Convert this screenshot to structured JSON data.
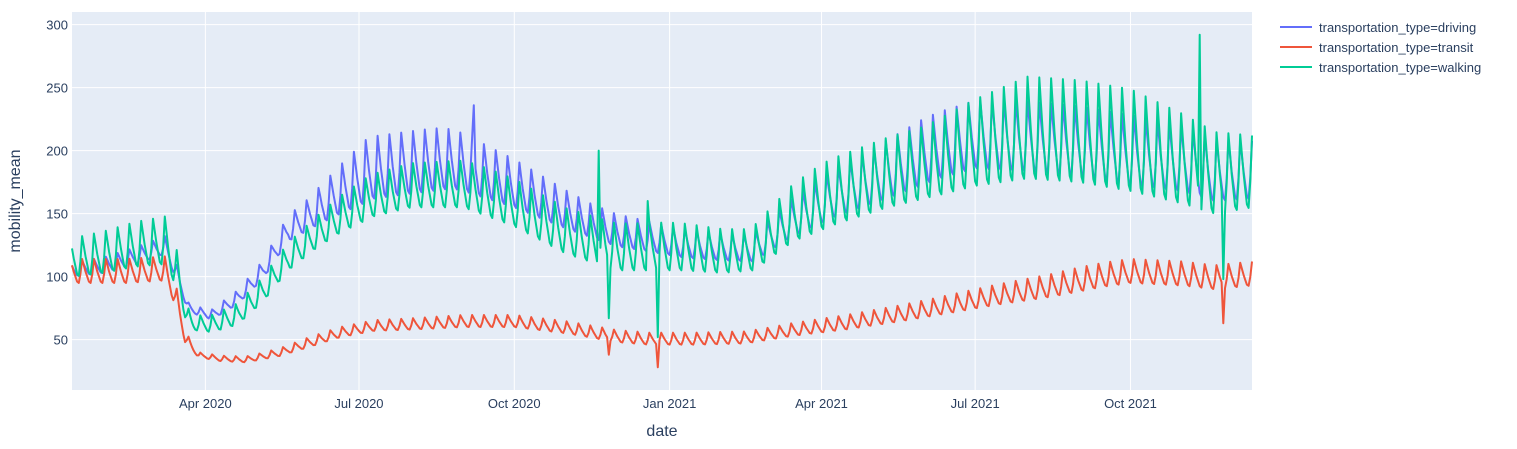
{
  "chart_data": {
    "type": "line",
    "title": "",
    "xlabel": "date",
    "ylabel": "mobility_mean",
    "x_start": "2020-01-13",
    "x_end": "2021-12-12",
    "ylim": [
      10,
      310
    ],
    "x_ticks": [
      {
        "date": "2020-04-01",
        "label": "Apr 2020"
      },
      {
        "date": "2020-07-01",
        "label": "Jul 2020"
      },
      {
        "date": "2020-10-01",
        "label": "Oct 2020"
      },
      {
        "date": "2021-01-01",
        "label": "Jan 2021"
      },
      {
        "date": "2021-04-01",
        "label": "Apr 2021"
      },
      {
        "date": "2021-07-01",
        "label": "Jul 2021"
      },
      {
        "date": "2021-10-01",
        "label": "Oct 2021"
      }
    ],
    "y_ticks": [
      50,
      100,
      150,
      200,
      250,
      300
    ],
    "grid": true,
    "legend_position": "top-right outside",
    "colors": {
      "plot_bg": "#E5ECF6",
      "grid": "#ffffff",
      "text": "#2a3f5f",
      "driving": "#636EFA",
      "transit": "#EF553B",
      "walking": "#00CC96"
    },
    "series": [
      {
        "name": "transportation_type=driving",
        "key": "driving",
        "anchors": [
          [
            "2020-01-13",
            100
          ],
          [
            "2020-02-01",
            103
          ],
          [
            "2020-02-20",
            110
          ],
          [
            "2020-03-08",
            118
          ],
          [
            "2020-03-15",
            98
          ],
          [
            "2020-03-22",
            72
          ],
          [
            "2020-04-05",
            66
          ],
          [
            "2020-04-20",
            78
          ],
          [
            "2020-05-05",
            98
          ],
          [
            "2020-05-20",
            128
          ],
          [
            "2020-06-05",
            140
          ],
          [
            "2020-06-20",
            150
          ],
          [
            "2020-07-10",
            162
          ],
          [
            "2020-08-01",
            166
          ],
          [
            "2020-08-25",
            170
          ],
          [
            "2020-09-01",
            168
          ],
          [
            "2020-10-01",
            155
          ],
          [
            "2020-11-01",
            138
          ],
          [
            "2020-12-01",
            124
          ],
          [
            "2020-12-20",
            120
          ],
          [
            "2021-01-10",
            115
          ],
          [
            "2021-02-01",
            113
          ],
          [
            "2021-02-20",
            112
          ],
          [
            "2021-03-15",
            132
          ],
          [
            "2021-04-10",
            148
          ],
          [
            "2021-05-10",
            162
          ],
          [
            "2021-06-10",
            178
          ],
          [
            "2021-07-01",
            186
          ],
          [
            "2021-08-01",
            184
          ],
          [
            "2021-09-01",
            180
          ],
          [
            "2021-10-01",
            173
          ],
          [
            "2021-11-01",
            168
          ],
          [
            "2021-11-20",
            160
          ],
          [
            "2021-12-12",
            162
          ]
        ],
        "amp_anchors": [
          [
            "2020-01-13",
            12
          ],
          [
            "2020-03-10",
            15
          ],
          [
            "2020-03-25",
            6
          ],
          [
            "2020-05-01",
            14
          ],
          [
            "2020-06-01",
            26
          ],
          [
            "2020-07-05",
            52
          ],
          [
            "2020-08-15",
            52
          ],
          [
            "2020-10-01",
            40
          ],
          [
            "2020-11-15",
            28
          ],
          [
            "2021-01-01",
            24
          ],
          [
            "2021-02-15",
            22
          ],
          [
            "2021-04-01",
            38
          ],
          [
            "2021-06-01",
            55
          ],
          [
            "2021-08-01",
            58
          ],
          [
            "2021-10-01",
            58
          ],
          [
            "2021-12-12",
            48
          ]
        ]
      },
      {
        "name": "transportation_type=transit",
        "key": "transit",
        "anchors": [
          [
            "2020-01-13",
            95
          ],
          [
            "2020-02-15",
            95
          ],
          [
            "2020-03-08",
            97
          ],
          [
            "2020-03-15",
            75
          ],
          [
            "2020-03-20",
            48
          ],
          [
            "2020-03-28",
            36
          ],
          [
            "2020-04-10",
            33
          ],
          [
            "2020-04-25",
            32
          ],
          [
            "2020-05-15",
            37
          ],
          [
            "2020-06-01",
            44
          ],
          [
            "2020-06-20",
            52
          ],
          [
            "2020-07-10",
            57
          ],
          [
            "2020-08-01",
            58
          ],
          [
            "2020-09-01",
            60
          ],
          [
            "2020-10-01",
            60
          ],
          [
            "2020-11-01",
            55
          ],
          [
            "2020-12-01",
            48
          ],
          [
            "2020-12-20",
            46
          ],
          [
            "2021-01-15",
            46
          ],
          [
            "2021-02-15",
            47
          ],
          [
            "2021-03-15",
            53
          ],
          [
            "2021-04-15",
            58
          ],
          [
            "2021-05-15",
            64
          ],
          [
            "2021-06-15",
            71
          ],
          [
            "2021-07-15",
            78
          ],
          [
            "2021-08-15",
            84
          ],
          [
            "2021-09-15",
            92
          ],
          [
            "2021-10-01",
            95
          ],
          [
            "2021-11-01",
            93
          ],
          [
            "2021-11-20",
            90
          ],
          [
            "2021-12-12",
            93
          ]
        ],
        "amp_anchors": [
          [
            "2020-01-13",
            20
          ],
          [
            "2020-03-12",
            20
          ],
          [
            "2020-03-25",
            4
          ],
          [
            "2020-05-01",
            5
          ],
          [
            "2020-06-01",
            8
          ],
          [
            "2020-09-01",
            10
          ],
          [
            "2020-12-01",
            10
          ],
          [
            "2021-03-01",
            10
          ],
          [
            "2021-06-01",
            14
          ],
          [
            "2021-09-01",
            20
          ],
          [
            "2021-12-12",
            20
          ]
        ]
      },
      {
        "name": "transportation_type=walking",
        "key": "walking",
        "anchors": [
          [
            "2020-01-13",
            100
          ],
          [
            "2020-02-01",
            103
          ],
          [
            "2020-02-20",
            108
          ],
          [
            "2020-03-08",
            110
          ],
          [
            "2020-03-15",
            92
          ],
          [
            "2020-03-22",
            58
          ],
          [
            "2020-04-05",
            56
          ],
          [
            "2020-04-20",
            62
          ],
          [
            "2020-05-05",
            80
          ],
          [
            "2020-05-20",
            105
          ],
          [
            "2020-06-05",
            122
          ],
          [
            "2020-06-20",
            135
          ],
          [
            "2020-07-10",
            148
          ],
          [
            "2020-08-01",
            155
          ],
          [
            "2020-09-01",
            155
          ],
          [
            "2020-10-01",
            140
          ],
          [
            "2020-11-01",
            118
          ],
          [
            "2020-12-01",
            105
          ],
          [
            "2020-12-20",
            105
          ],
          [
            "2021-01-10",
            105
          ],
          [
            "2021-02-01",
            103
          ],
          [
            "2021-02-20",
            105
          ],
          [
            "2021-03-15",
            128
          ],
          [
            "2021-04-10",
            142
          ],
          [
            "2021-05-10",
            155
          ],
          [
            "2021-06-10",
            165
          ],
          [
            "2021-07-01",
            172
          ],
          [
            "2021-08-01",
            178
          ],
          [
            "2021-09-01",
            175
          ],
          [
            "2021-10-01",
            168
          ],
          [
            "2021-11-01",
            158
          ],
          [
            "2021-11-20",
            150
          ],
          [
            "2021-12-12",
            155
          ]
        ],
        "amp_anchors": [
          [
            "2020-01-13",
            32
          ],
          [
            "2020-03-10",
            40
          ],
          [
            "2020-03-25",
            12
          ],
          [
            "2020-05-01",
            20
          ],
          [
            "2020-06-01",
            25
          ],
          [
            "2020-07-05",
            35
          ],
          [
            "2020-09-15",
            40
          ],
          [
            "2020-11-01",
            38
          ],
          [
            "2021-01-01",
            40
          ],
          [
            "2021-02-15",
            35
          ],
          [
            "2021-04-01",
            55
          ],
          [
            "2021-06-01",
            60
          ],
          [
            "2021-08-01",
            85
          ],
          [
            "2021-10-01",
            85
          ],
          [
            "2021-11-15",
            70
          ],
          [
            "2021-12-12",
            60
          ]
        ]
      }
    ],
    "events": [
      {
        "key": "driving",
        "date": "2020-09-07",
        "value": 236
      },
      {
        "key": "walking",
        "date": "2020-11-26",
        "value": 67
      },
      {
        "key": "walking",
        "date": "2020-12-25",
        "value": 52
      },
      {
        "key": "transit",
        "date": "2020-11-26",
        "value": 38
      },
      {
        "key": "transit",
        "date": "2020-12-25",
        "value": 28
      },
      {
        "key": "walking",
        "date": "2021-11-11",
        "value": 292
      },
      {
        "key": "walking",
        "date": "2021-11-25",
        "value": 98
      },
      {
        "key": "transit",
        "date": "2021-11-25",
        "value": 63
      },
      {
        "key": "walking",
        "date": "2020-11-20",
        "value": 200
      },
      {
        "key": "walking",
        "date": "2020-12-19",
        "value": 160
      }
    ]
  }
}
